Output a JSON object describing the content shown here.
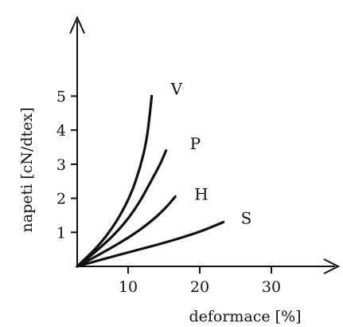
{
  "chart_data": {
    "type": "line",
    "xlabel": "deformace [%]",
    "ylabel": "napeti [cN/dtex]",
    "xlim": [
      0,
      35
    ],
    "ylim": [
      0,
      7
    ],
    "xticks": [
      10,
      20,
      30
    ],
    "yticks": [
      1,
      2,
      3,
      4,
      5
    ],
    "x_tick_labels": [
      "10",
      "20",
      "30"
    ],
    "y_tick_labels": [
      "1",
      "2",
      "3",
      "4",
      "5"
    ],
    "grid": false,
    "legend": "none",
    "series": [
      {
        "name": "V",
        "points": [
          [
            0,
            0
          ],
          [
            3,
            0.6
          ],
          [
            5.5,
            1.3
          ],
          [
            7.5,
            2.1
          ],
          [
            8.8,
            2.9
          ],
          [
            9.7,
            3.7
          ],
          [
            10.1,
            4.4
          ],
          [
            10.4,
            5.0
          ]
        ]
      },
      {
        "name": "P",
        "points": [
          [
            0,
            0
          ],
          [
            3,
            0.5
          ],
          [
            6,
            1.1
          ],
          [
            8.5,
            1.8
          ],
          [
            10.3,
            2.5
          ],
          [
            11.6,
            3.0
          ],
          [
            12.4,
            3.4
          ]
        ]
      },
      {
        "name": "H",
        "points": [
          [
            0,
            0
          ],
          [
            4,
            0.45
          ],
          [
            8,
            0.95
          ],
          [
            10.8,
            1.4
          ],
          [
            12.5,
            1.75
          ],
          [
            13.7,
            2.05
          ]
        ]
      },
      {
        "name": "S",
        "points": [
          [
            0,
            0
          ],
          [
            6,
            0.35
          ],
          [
            12,
            0.68
          ],
          [
            17,
            1.0
          ],
          [
            20.4,
            1.3
          ]
        ]
      }
    ]
  }
}
